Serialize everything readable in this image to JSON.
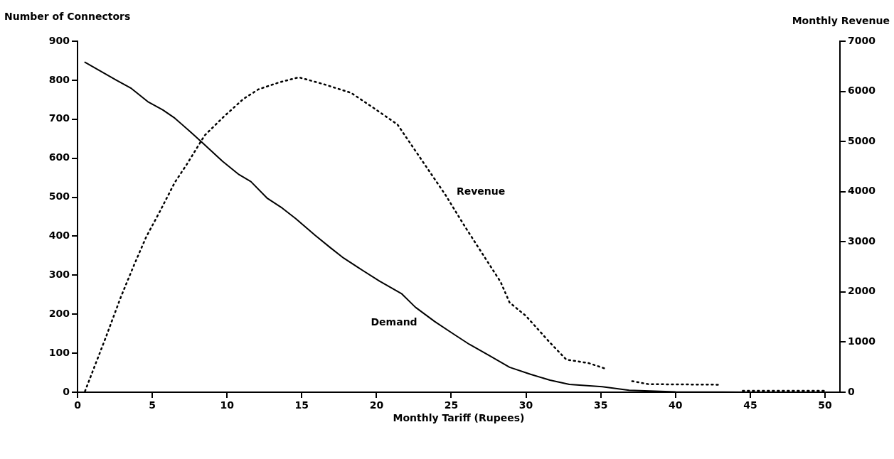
{
  "chart_data": {
    "type": "line",
    "xlabel": "Monthly Tariff (Rupees)",
    "ylabel": "Number of Connectors",
    "y2label": "Monthly Revenue",
    "xlim": [
      0,
      51
    ],
    "xticks": [
      0,
      5,
      10,
      15,
      20,
      25,
      30,
      35,
      40,
      45,
      50
    ],
    "ylim": [
      0,
      900
    ],
    "yticks": [
      0,
      100,
      200,
      300,
      400,
      500,
      600,
      700,
      800,
      900
    ],
    "y2lim": [
      0,
      7000
    ],
    "y2ticks": [
      0,
      1000,
      2000,
      3000,
      4000,
      5000,
      6000,
      7000
    ],
    "grid": false,
    "legend": false,
    "marker": "none",
    "series": [
      {
        "name": "Demand",
        "color": "#000000",
        "line_style": "solid",
        "x": [
          0.5,
          2.6,
          3.6,
          4.7,
          5.7,
          6.5,
          7.6,
          8.4,
          9.7,
          10.8,
          11.6,
          12.7,
          13.7,
          14.6,
          15.9,
          16.9,
          17.8,
          18.8,
          20.2,
          21.7,
          22.6,
          23.9,
          25.0,
          26.2,
          27.5,
          28.9,
          30.3,
          31.6,
          32.9,
          35.1,
          36.9,
          40,
          45,
          50
        ],
        "values": [
          846,
          800,
          779,
          745,
          724,
          703,
          666,
          638,
          592,
          558,
          540,
          497,
          472,
          445,
          402,
          371,
          344,
          319,
          285,
          252,
          218,
          181,
          153,
          123,
          95,
          64,
          46,
          31,
          20,
          14,
          5,
          1,
          0,
          0
        ]
      },
      {
        "name": "Revenue",
        "color": "#000000",
        "line_style": "dotted",
        "axis": "y2",
        "x": [
          0.5,
          1.9,
          2.9,
          3.8,
          4.6,
          5.5,
          6.5,
          7.3,
          8.5,
          9.8,
          11.1,
          12.1,
          13.5,
          14.8,
          16.5,
          18.3,
          19.9,
          21.4,
          23.0,
          24.6,
          25.9,
          27.0,
          28.3,
          28.9,
          30.0,
          31.6,
          32.7,
          34.2,
          35.4,
          36.2,
          37.1,
          38.2,
          43.0,
          43.6,
          44.5,
          50
        ],
        "values": [
          20,
          1100,
          1900,
          2550,
          3100,
          3600,
          4180,
          4540,
          5120,
          5500,
          5850,
          6040,
          6180,
          6280,
          6140,
          5970,
          5650,
          5340,
          4640,
          3940,
          3310,
          2800,
          2200,
          1790,
          1520,
          990,
          650,
          580,
          460,
          null,
          220,
          160,
          150,
          null,
          30,
          30
        ]
      }
    ]
  }
}
